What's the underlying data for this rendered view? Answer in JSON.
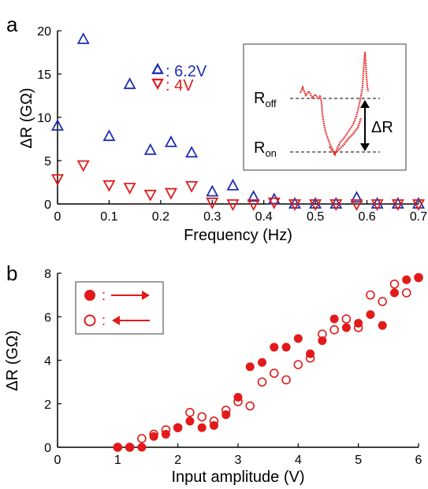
{
  "panels": {
    "a_label": "a",
    "b_label": "b"
  },
  "colors": {
    "blue": "#1f2fb0",
    "red": "#e21a1a",
    "axis": "#000000",
    "box": "#7f7f7f"
  },
  "chart_data": [
    {
      "panel": "a",
      "type": "scatter",
      "xlabel": "Frequency (Hz)",
      "ylabel": "ΔR (GΩ)",
      "xlim": [
        0,
        0.7
      ],
      "ylim": [
        0,
        20
      ],
      "xticks": [
        "0",
        "0.1",
        "0.2",
        "0.3",
        "0.4",
        "0.5",
        "0.6",
        "0.7"
      ],
      "yticks": [
        "0",
        "5",
        "10",
        "15",
        "20"
      ],
      "legend_position": "top-center",
      "series": [
        {
          "name": "6.2V",
          "marker": "triangle-up",
          "color": "#1f2fb0",
          "filled": false,
          "x": [
            0,
            0.05,
            0.1,
            0.14,
            0.18,
            0.22,
            0.26,
            0.3,
            0.34,
            0.38,
            0.42,
            0.46,
            0.5,
            0.54,
            0.58,
            0.62,
            0.66,
            0.7
          ],
          "y": [
            9,
            19,
            7.8,
            13.8,
            6.2,
            7.1,
            5.9,
            1.4,
            2.1,
            0.8,
            0.5,
            0,
            0,
            0,
            0.7,
            0,
            0,
            0
          ]
        },
        {
          "name": "4V",
          "marker": "triangle-down",
          "color": "#e21a1a",
          "filled": false,
          "x": [
            0,
            0.05,
            0.1,
            0.14,
            0.18,
            0.22,
            0.26,
            0.3,
            0.34,
            0.38,
            0.42,
            0.46,
            0.5,
            0.54,
            0.58,
            0.62,
            0.66,
            0.7
          ],
          "y": [
            2.9,
            4.5,
            2.2,
            1.9,
            1.1,
            1.3,
            2.1,
            0.2,
            0,
            0,
            0.2,
            0,
            0,
            0,
            0,
            0,
            0,
            0
          ]
        }
      ],
      "legend_entries": [
        {
          "label": ": 6.2V",
          "color": "#1f2fb0",
          "marker": "triangle-up"
        },
        {
          "label": ": 4V",
          "color": "#e21a1a",
          "marker": "triangle-down"
        }
      ],
      "inset": {
        "type": "line",
        "labels": {
          "off": "R",
          "off_sub": "off",
          "on": "R",
          "on_sub": "on",
          "delta": "ΔR"
        }
      }
    },
    {
      "panel": "b",
      "type": "scatter",
      "xlabel": "Input amplitude (V)",
      "ylabel": "ΔR (GΩ)",
      "xlim": [
        0,
        6
      ],
      "ylim": [
        0,
        8
      ],
      "xticks": [
        "0",
        "1",
        "2",
        "3",
        "4",
        "5",
        "6"
      ],
      "yticks": [
        "0",
        "2",
        "4",
        "6",
        "8"
      ],
      "legend_position": "top-left",
      "series": [
        {
          "marker": "filled-circle",
          "direction": "forward",
          "color": "#e21a1a",
          "filled": true,
          "x": [
            1.0,
            1.2,
            1.4,
            1.6,
            1.8,
            2.0,
            2.2,
            2.4,
            2.6,
            2.8,
            3.0,
            3.2,
            3.4,
            3.6,
            3.8,
            4.0,
            4.2,
            4.4,
            4.6,
            4.8,
            5.0,
            5.2,
            5.4,
            5.6,
            5.8,
            6.0
          ],
          "y": [
            0,
            0,
            0,
            0.5,
            0.6,
            0.9,
            1.2,
            0.9,
            1.0,
            1.5,
            2.3,
            3.7,
            3.9,
            4.6,
            4.6,
            5.0,
            4.3,
            4.9,
            5.9,
            5.5,
            5.7,
            6.1,
            5.6,
            7.1,
            7.7,
            7.8
          ]
        },
        {
          "marker": "open-circle",
          "direction": "backward",
          "color": "#e21a1a",
          "filled": false,
          "x": [
            1.0,
            1.2,
            1.4,
            1.6,
            1.8,
            2.0,
            2.2,
            2.4,
            2.6,
            2.8,
            3.0,
            3.2,
            3.4,
            3.6,
            3.8,
            4.0,
            4.2,
            4.4,
            4.6,
            4.8,
            5.0,
            5.2,
            5.4,
            5.6,
            5.8,
            6.0
          ],
          "y": [
            0,
            0,
            0.4,
            0.6,
            0.8,
            0.9,
            1.6,
            1.4,
            1.2,
            1.7,
            2.1,
            1.9,
            3.0,
            3.4,
            3.1,
            3.8,
            4.1,
            5.2,
            5.4,
            5.9,
            5.5,
            7.0,
            6.7,
            7.5,
            7.1,
            7.8
          ]
        }
      ],
      "legend_entries": [
        {
          "label": ":",
          "marker": "filled-circle",
          "arrow": "right"
        },
        {
          "label": ":",
          "marker": "open-circle",
          "arrow": "left"
        }
      ]
    }
  ]
}
